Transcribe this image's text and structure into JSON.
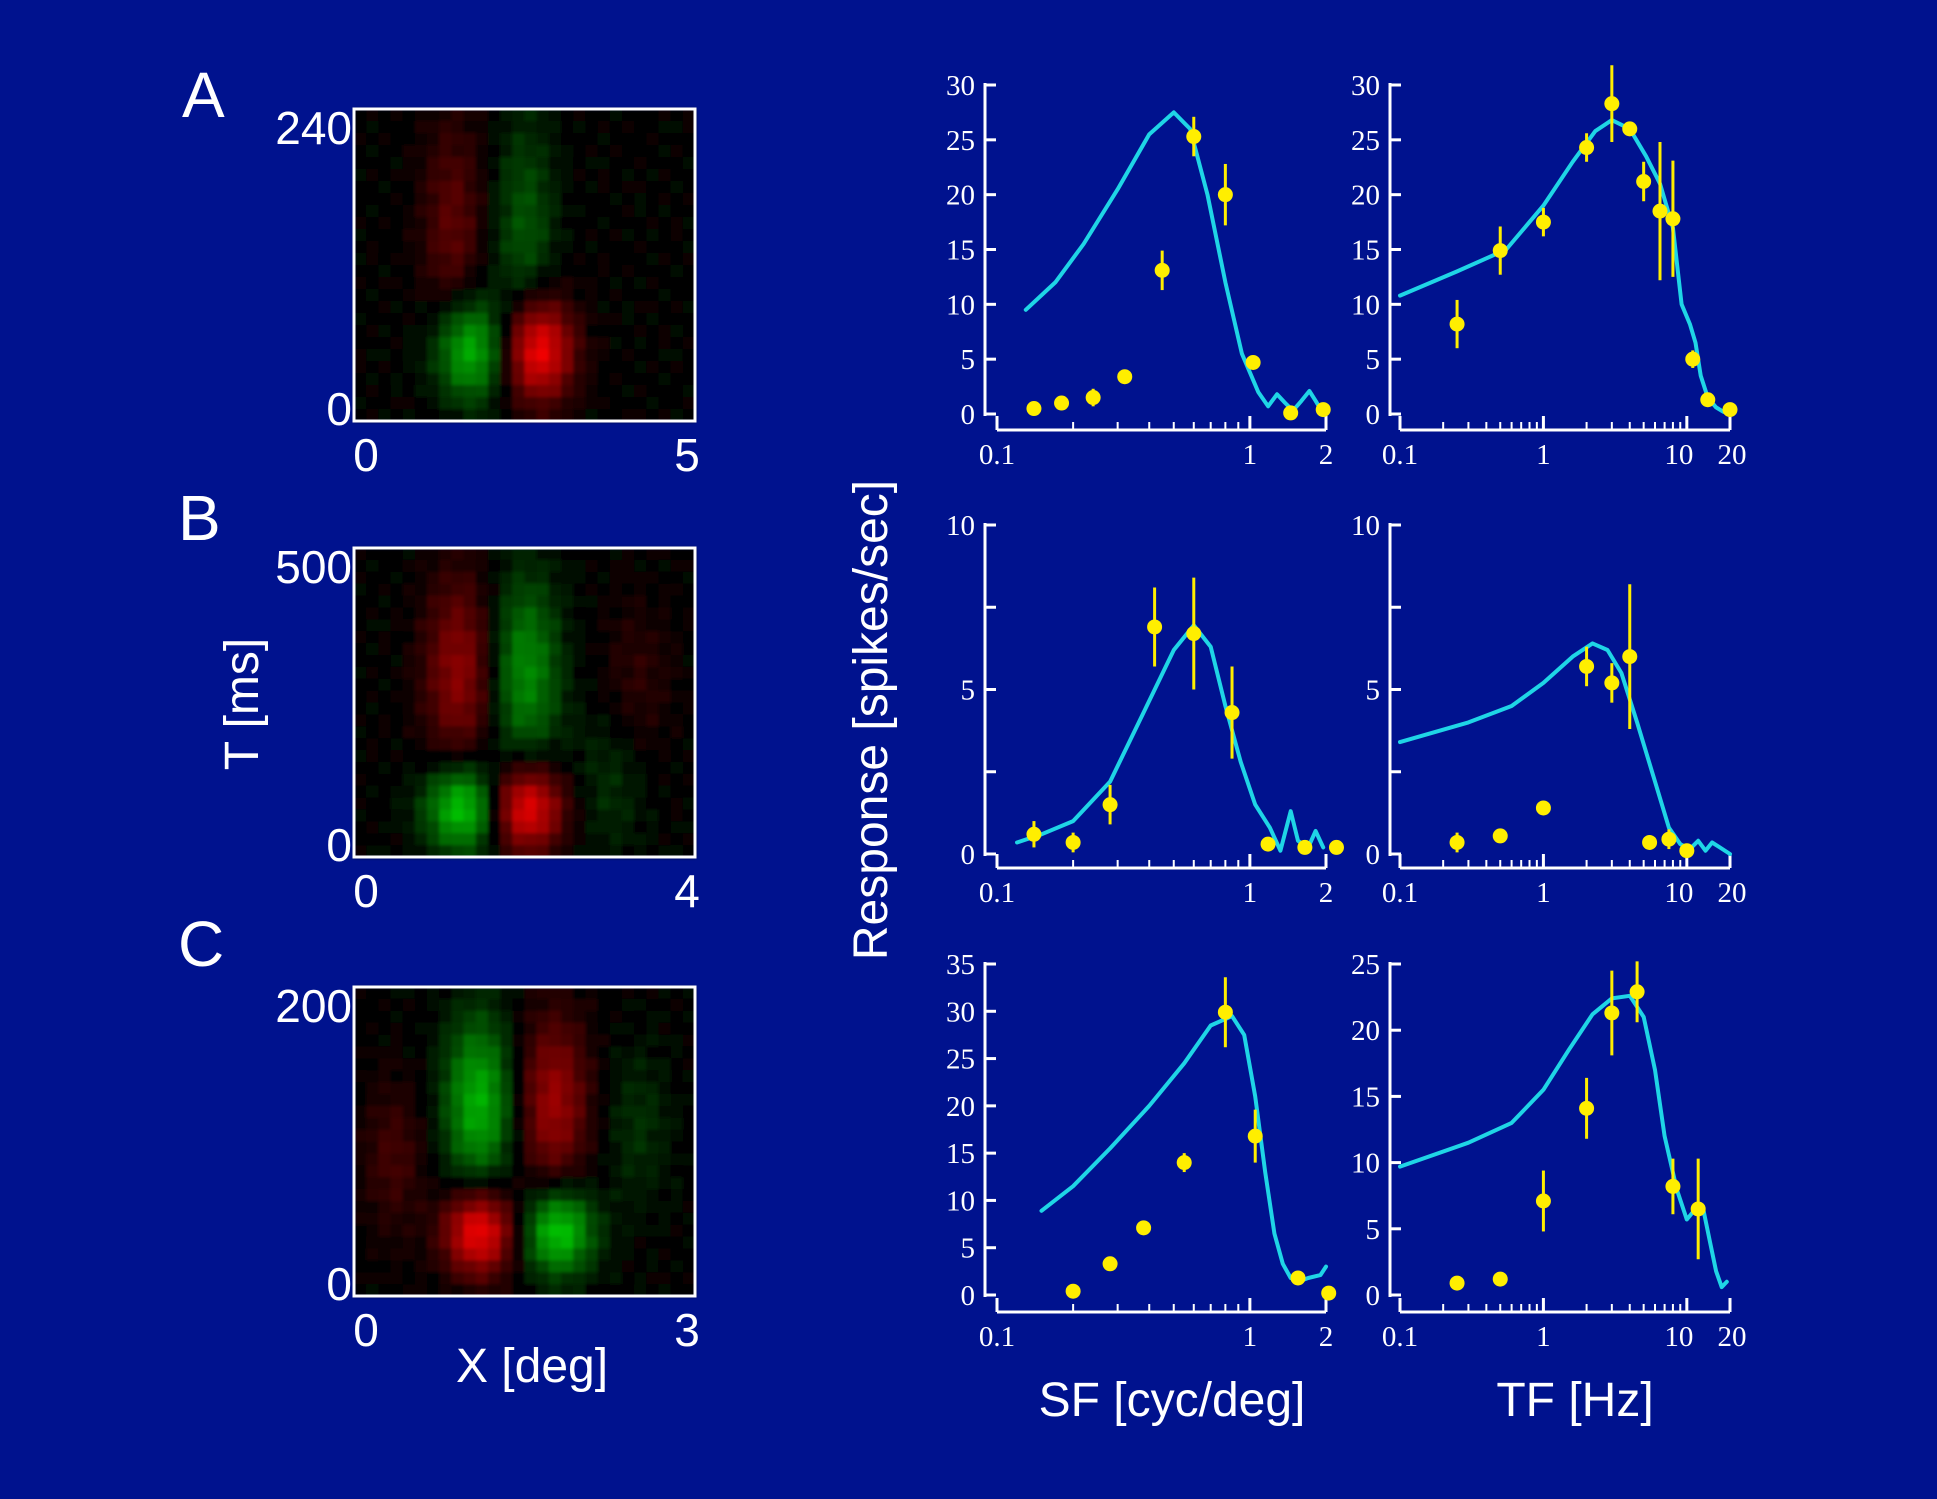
{
  "colors": {
    "background": "#00128e",
    "fit_curve": "#1fd5e6",
    "data_points": "#ffee00",
    "axes": "#ffffff",
    "heatmap_positive": "#ff2020",
    "heatmap_negative": "#20e020"
  },
  "shared_labels": {
    "heatmap_xlabel": "X [deg]",
    "heatmap_ylabel": "T [ms]",
    "response_ylabel": "Response  [spikes/sec]",
    "sf_xlabel": "SF  [cyc/deg]",
    "tf_xlabel": "TF   [Hz]"
  },
  "chart_data": [
    {
      "type": "heatmap",
      "panel": "A",
      "x_range": [
        0,
        5
      ],
      "y_range": [
        0,
        240
      ],
      "x_tick_labels": [
        "0",
        "5"
      ],
      "y_tick_labels": [
        "0",
        "240"
      ],
      "blobs": [
        {
          "sign": 1,
          "x": 2.7,
          "y": 55,
          "sx": 0.36,
          "sy": 28,
          "amp": 1.0
        },
        {
          "sign": -1,
          "x": 1.7,
          "y": 55,
          "sx": 0.36,
          "sy": 28,
          "amp": 0.8
        },
        {
          "sign": 1,
          "x": 1.45,
          "y": 150,
          "sx": 0.32,
          "sy": 60,
          "amp": 0.35
        },
        {
          "sign": -1,
          "x": 2.5,
          "y": 150,
          "sx": 0.32,
          "sy": 60,
          "amp": 0.35
        }
      ]
    },
    {
      "type": "heatmap",
      "panel": "B",
      "x_range": [
        0,
        4
      ],
      "y_range": [
        0,
        500
      ],
      "x_tick_labels": [
        "0",
        "4"
      ],
      "y_tick_labels": [
        "0",
        "500"
      ],
      "blobs": [
        {
          "sign": 1,
          "x": 2.0,
          "y": 80,
          "sx": 0.32,
          "sy": 50,
          "amp": 1.0
        },
        {
          "sign": -1,
          "x": 1.3,
          "y": 80,
          "sx": 0.32,
          "sy": 50,
          "amp": 0.95
        },
        {
          "sign": 1,
          "x": 1.25,
          "y": 300,
          "sx": 0.3,
          "sy": 110,
          "amp": 0.55
        },
        {
          "sign": -1,
          "x": 2.0,
          "y": 300,
          "sx": 0.3,
          "sy": 110,
          "amp": 0.6
        },
        {
          "sign": 1,
          "x": 3.3,
          "y": 280,
          "sx": 0.3,
          "sy": 90,
          "amp": 0.18
        },
        {
          "sign": -1,
          "x": 3.0,
          "y": 120,
          "sx": 0.3,
          "sy": 90,
          "amp": 0.2
        }
      ]
    },
    {
      "type": "heatmap",
      "panel": "C",
      "x_range": [
        0,
        3
      ],
      "y_range": [
        0,
        200
      ],
      "x_tick_labels": [
        "0",
        "3"
      ],
      "y_tick_labels": [
        "0",
        "200"
      ],
      "blobs": [
        {
          "sign": 1,
          "x": 1.1,
          "y": 42,
          "sx": 0.22,
          "sy": 20,
          "amp": 1.0
        },
        {
          "sign": -1,
          "x": 1.8,
          "y": 42,
          "sx": 0.22,
          "sy": 20,
          "amp": 0.9
        },
        {
          "sign": -1,
          "x": 1.1,
          "y": 125,
          "sx": 0.22,
          "sy": 40,
          "amp": 0.75
        },
        {
          "sign": 1,
          "x": 1.75,
          "y": 125,
          "sx": 0.22,
          "sy": 40,
          "amp": 0.6
        },
        {
          "sign": 1,
          "x": 0.35,
          "y": 90,
          "sx": 0.2,
          "sy": 35,
          "amp": 0.25
        },
        {
          "sign": -1,
          "x": 2.5,
          "y": 110,
          "sx": 0.2,
          "sy": 35,
          "amp": 0.2
        }
      ]
    },
    {
      "type": "scatter",
      "row": "A",
      "variable": "SF",
      "log_x": true,
      "xlim": [
        0.1,
        2
      ],
      "ylim": [
        0,
        30
      ],
      "x_tick_labels": [
        "0.1",
        "1",
        "2"
      ],
      "y_tick_labels": [
        "0",
        "5",
        "10",
        "15",
        "20",
        "25",
        "30"
      ],
      "y_ticks": [
        0,
        5,
        10,
        15,
        20,
        25,
        30
      ],
      "points": [
        {
          "x": 0.14,
          "y": 0.5,
          "err": 0
        },
        {
          "x": 0.18,
          "y": 1.0,
          "err": 0
        },
        {
          "x": 0.24,
          "y": 1.5,
          "err": 0.8
        },
        {
          "x": 0.32,
          "y": 3.4,
          "err": 0
        },
        {
          "x": 0.45,
          "y": 13.1,
          "err": 1.8
        },
        {
          "x": 0.6,
          "y": 25.3,
          "err": 1.8
        },
        {
          "x": 0.8,
          "y": 20.0,
          "err": 2.8
        },
        {
          "x": 1.03,
          "y": 4.7,
          "err": 0
        },
        {
          "x": 1.45,
          "y": 0.1,
          "err": 0
        },
        {
          "x": 1.95,
          "y": 0.4,
          "err": 0
        }
      ],
      "fit": [
        [
          0.13,
          9.5
        ],
        [
          0.17,
          12
        ],
        [
          0.22,
          15.5
        ],
        [
          0.3,
          20.5
        ],
        [
          0.4,
          25.5
        ],
        [
          0.5,
          27.5
        ],
        [
          0.58,
          26
        ],
        [
          0.68,
          20
        ],
        [
          0.8,
          12
        ],
        [
          0.93,
          5.5
        ],
        [
          1.08,
          2
        ],
        [
          1.18,
          0.7
        ],
        [
          1.28,
          1.8
        ],
        [
          1.38,
          1.0
        ],
        [
          1.48,
          0.3
        ],
        [
          1.6,
          1.2
        ],
        [
          1.72,
          2.1
        ],
        [
          1.82,
          1.2
        ],
        [
          1.92,
          0.3
        ]
      ]
    },
    {
      "type": "scatter",
      "row": "A",
      "variable": "TF",
      "log_x": true,
      "xlim": [
        0.1,
        20
      ],
      "ylim": [
        0,
        30
      ],
      "x_tick_labels": [
        "0.1",
        "1",
        "10",
        "20"
      ],
      "y_tick_labels": [
        "0",
        "5",
        "10",
        "15",
        "20",
        "25",
        "30"
      ],
      "y_ticks": [
        0,
        5,
        10,
        15,
        20,
        25,
        30
      ],
      "points": [
        {
          "x": 0.25,
          "y": 8.2,
          "err": 2.2
        },
        {
          "x": 0.5,
          "y": 14.9,
          "err": 2.2
        },
        {
          "x": 1.0,
          "y": 17.5,
          "err": 1.3
        },
        {
          "x": 2.0,
          "y": 24.3,
          "err": 1.3
        },
        {
          "x": 3.0,
          "y": 28.3,
          "err": 3.5
        },
        {
          "x": 4.0,
          "y": 26.0,
          "err": 0
        },
        {
          "x": 5.0,
          "y": 21.2,
          "err": 1.8
        },
        {
          "x": 6.5,
          "y": 18.5,
          "err": 6.3
        },
        {
          "x": 8.0,
          "y": 17.8,
          "err": 5.3
        },
        {
          "x": 11.0,
          "y": 5.0,
          "err": 0.8
        },
        {
          "x": 14.0,
          "y": 1.3,
          "err": 0
        },
        {
          "x": 20.0,
          "y": 0.4,
          "err": 0
        }
      ],
      "fit": [
        [
          0.1,
          10.8
        ],
        [
          0.25,
          13
        ],
        [
          0.55,
          15
        ],
        [
          1.0,
          19
        ],
        [
          1.6,
          23
        ],
        [
          2.3,
          25.8
        ],
        [
          3.0,
          26.8
        ],
        [
          4.0,
          26
        ],
        [
          5.2,
          23.5
        ],
        [
          6.5,
          21
        ],
        [
          8.0,
          17
        ],
        [
          9.2,
          10
        ],
        [
          10.5,
          8.2
        ],
        [
          11.5,
          6.5
        ],
        [
          12.5,
          3.5
        ],
        [
          14.0,
          1.5
        ],
        [
          16.0,
          0.6
        ],
        [
          18.0,
          0.2
        ]
      ]
    },
    {
      "type": "scatter",
      "row": "B",
      "variable": "SF",
      "log_x": true,
      "xlim": [
        0.1,
        2
      ],
      "ylim": [
        0,
        10
      ],
      "x_tick_labels": [
        "0.1",
        "1",
        "2"
      ],
      "y_tick_labels": [
        "0",
        "5",
        "10"
      ],
      "y_ticks": [
        0,
        2.5,
        5,
        7.5,
        10
      ],
      "points": [
        {
          "x": 0.14,
          "y": 0.6,
          "err": 0.4
        },
        {
          "x": 0.2,
          "y": 0.35,
          "err": 0.3
        },
        {
          "x": 0.28,
          "y": 1.5,
          "err": 0.6
        },
        {
          "x": 0.42,
          "y": 6.9,
          "err": 1.2
        },
        {
          "x": 0.6,
          "y": 6.7,
          "err": 1.7
        },
        {
          "x": 0.85,
          "y": 4.3,
          "err": 1.4
        },
        {
          "x": 1.18,
          "y": 0.3,
          "err": 0
        },
        {
          "x": 1.65,
          "y": 0.2,
          "err": 0
        },
        {
          "x": 2.2,
          "y": 0.2,
          "err": 0
        }
      ],
      "fit": [
        [
          0.12,
          0.35
        ],
        [
          0.15,
          0.6
        ],
        [
          0.2,
          1.0
        ],
        [
          0.28,
          2.2
        ],
        [
          0.38,
          4.3
        ],
        [
          0.5,
          6.2
        ],
        [
          0.6,
          6.95
        ],
        [
          0.7,
          6.3
        ],
        [
          0.8,
          4.5
        ],
        [
          0.92,
          2.8
        ],
        [
          1.05,
          1.5
        ],
        [
          1.2,
          0.8
        ],
        [
          1.32,
          0.1
        ],
        [
          1.45,
          1.3
        ],
        [
          1.55,
          0.4
        ],
        [
          1.7,
          0.2
        ],
        [
          1.82,
          0.7
        ],
        [
          1.95,
          0.2
        ]
      ]
    },
    {
      "type": "scatter",
      "row": "B",
      "variable": "TF",
      "log_x": true,
      "xlim": [
        0.1,
        20
      ],
      "ylim": [
        0,
        10
      ],
      "x_tick_labels": [
        "0.1",
        "1",
        "10",
        "20"
      ],
      "y_tick_labels": [
        "0",
        "5",
        "10"
      ],
      "y_ticks": [
        0,
        2.5,
        5,
        7.5,
        10
      ],
      "points": [
        {
          "x": 0.25,
          "y": 0.35,
          "err": 0.3
        },
        {
          "x": 0.5,
          "y": 0.55,
          "err": 0
        },
        {
          "x": 1.0,
          "y": 1.4,
          "err": 0
        },
        {
          "x": 2.0,
          "y": 5.7,
          "err": 0.6
        },
        {
          "x": 3.0,
          "y": 5.2,
          "err": 0.6
        },
        {
          "x": 4.0,
          "y": 6.0,
          "err": 2.2
        },
        {
          "x": 5.5,
          "y": 0.35,
          "err": 0
        },
        {
          "x": 7.5,
          "y": 0.45,
          "err": 0.3
        },
        {
          "x": 10.0,
          "y": 0.1,
          "err": 0
        }
      ],
      "fit": [
        [
          0.1,
          3.4
        ],
        [
          0.3,
          4.0
        ],
        [
          0.6,
          4.5
        ],
        [
          1.0,
          5.2
        ],
        [
          1.6,
          6.0
        ],
        [
          2.2,
          6.4
        ],
        [
          2.8,
          6.2
        ],
        [
          3.5,
          5.5
        ],
        [
          4.5,
          4.0
        ],
        [
          6.0,
          2.2
        ],
        [
          7.5,
          0.8
        ],
        [
          9.0,
          0.3
        ],
        [
          10.5,
          0.15
        ],
        [
          12.0,
          0.4
        ],
        [
          13.5,
          0.1
        ],
        [
          15.0,
          0.35
        ],
        [
          17.0,
          0.2
        ],
        [
          20.0,
          0.0
        ]
      ]
    },
    {
      "type": "scatter",
      "row": "C",
      "variable": "SF",
      "log_x": true,
      "xlim": [
        0.1,
        2
      ],
      "ylim": [
        0,
        35
      ],
      "x_tick_labels": [
        "0.1",
        "1",
        "2"
      ],
      "y_tick_labels": [
        "0",
        "5",
        "10",
        "15",
        "20",
        "25",
        "30",
        "35"
      ],
      "y_ticks": [
        0,
        5,
        10,
        15,
        20,
        25,
        30,
        35
      ],
      "points": [
        {
          "x": 0.2,
          "y": 0.4,
          "err": 0
        },
        {
          "x": 0.28,
          "y": 3.3,
          "err": 0
        },
        {
          "x": 0.38,
          "y": 7.1,
          "err": 0
        },
        {
          "x": 0.55,
          "y": 14.0,
          "err": 1.0
        },
        {
          "x": 0.8,
          "y": 29.9,
          "err": 3.7
        },
        {
          "x": 1.05,
          "y": 16.8,
          "err": 2.8
        },
        {
          "x": 1.55,
          "y": 1.8,
          "err": 0
        },
        {
          "x": 2.05,
          "y": 0.2,
          "err": 0
        }
      ],
      "fit": [
        [
          0.15,
          8.9
        ],
        [
          0.2,
          11.5
        ],
        [
          0.28,
          15.5
        ],
        [
          0.4,
          20
        ],
        [
          0.55,
          24.5
        ],
        [
          0.7,
          28.5
        ],
        [
          0.85,
          29.5
        ],
        [
          0.95,
          27.5
        ],
        [
          1.05,
          21
        ],
        [
          1.15,
          13
        ],
        [
          1.25,
          6.5
        ],
        [
          1.35,
          3.3
        ],
        [
          1.45,
          1.8
        ],
        [
          1.55,
          1.4
        ],
        [
          1.7,
          1.8
        ],
        [
          1.9,
          2.1
        ],
        [
          2.0,
          3.0
        ]
      ]
    },
    {
      "type": "scatter",
      "row": "C",
      "variable": "TF",
      "log_x": true,
      "xlim": [
        0.1,
        20
      ],
      "ylim": [
        0,
        25
      ],
      "x_tick_labels": [
        "0.1",
        "1",
        "10",
        "20"
      ],
      "y_tick_labels": [
        "0",
        "5",
        "10",
        "15",
        "20",
        "25"
      ],
      "y_ticks": [
        0,
        5,
        10,
        15,
        20,
        25
      ],
      "points": [
        {
          "x": 0.25,
          "y": 0.9,
          "err": 0
        },
        {
          "x": 0.5,
          "y": 1.2,
          "err": 0
        },
        {
          "x": 1.0,
          "y": 7.1,
          "err": 2.3
        },
        {
          "x": 2.0,
          "y": 14.1,
          "err": 2.3
        },
        {
          "x": 3.0,
          "y": 21.3,
          "err": 3.2
        },
        {
          "x": 4.5,
          "y": 22.9,
          "err": 2.3
        },
        {
          "x": 8.0,
          "y": 8.2,
          "err": 2.1
        },
        {
          "x": 12.0,
          "y": 6.5,
          "err": 3.8
        }
      ],
      "fit": [
        [
          0.1,
          9.7
        ],
        [
          0.3,
          11.5
        ],
        [
          0.6,
          13
        ],
        [
          1.0,
          15.5
        ],
        [
          1.5,
          18.5
        ],
        [
          2.2,
          21.2
        ],
        [
          3.0,
          22.4
        ],
        [
          4.0,
          22.6
        ],
        [
          5.0,
          21
        ],
        [
          6.0,
          17
        ],
        [
          7.0,
          12
        ],
        [
          8.5,
          8.0
        ],
        [
          10.0,
          5.7
        ],
        [
          11.5,
          6.5
        ],
        [
          13.0,
          6.5
        ],
        [
          14.5,
          4.0
        ],
        [
          16.0,
          1.8
        ],
        [
          17.5,
          0.6
        ],
        [
          19.0,
          1.0
        ]
      ]
    }
  ]
}
